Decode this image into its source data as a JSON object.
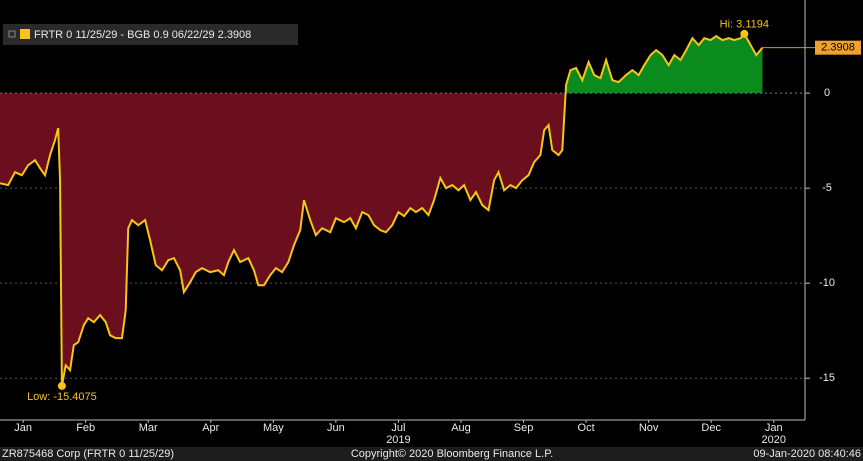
{
  "chart_data": {
    "type": "line",
    "legend_label": "FRTR 0 11/25/29 - BGB 0.9 06/22/29 2.3908",
    "color": "#f5c518",
    "fill_above": "#0b8a1e",
    "fill_below": "#6b0f1f",
    "grid": true,
    "x": [
      0.13,
      0.26,
      0.37,
      0.48,
      0.58,
      0.69,
      0.77,
      0.85,
      0.93,
      1.01,
      1.06,
      1.09,
      1.12,
      1.18,
      1.25,
      1.31,
      1.38,
      1.47,
      1.54,
      1.63,
      1.73,
      1.82,
      1.89,
      1.98,
      2.08,
      2.14,
      2.18,
      2.24,
      2.34,
      2.45,
      2.53,
      2.62,
      2.72,
      2.82,
      2.91,
      3.01,
      3.07,
      3.17,
      3.26,
      3.36,
      3.49,
      3.62,
      3.71,
      3.78,
      3.87,
      3.97,
      4.1,
      4.19,
      4.26,
      4.35,
      4.45,
      4.54,
      4.64,
      4.74,
      4.83,
      4.93,
      4.99,
      5.09,
      5.18,
      5.28,
      5.41,
      5.5,
      5.63,
      5.73,
      5.82,
      5.92,
      6.02,
      6.11,
      6.21,
      6.3,
      6.4,
      6.5,
      6.59,
      6.69,
      6.78,
      6.88,
      6.98,
      7.07,
      7.17,
      7.26,
      7.36,
      7.46,
      7.55,
      7.65,
      7.74,
      7.84,
      7.94,
      8.03,
      8.1,
      8.19,
      8.29,
      8.38,
      8.48,
      8.58,
      8.67,
      8.77,
      8.83,
      8.9,
      8.96,
      9.06,
      9.12,
      9.18,
      9.25,
      9.34,
      9.44,
      9.54,
      9.63,
      9.73,
      9.82,
      9.92,
      10.02,
      10.14,
      10.24,
      10.34,
      10.43,
      10.53,
      10.62,
      10.72,
      10.82,
      10.91,
      11.01,
      11.1,
      11.2,
      11.3,
      11.39,
      11.49,
      11.58,
      11.68,
      11.78,
      11.87,
      11.97,
      12.03,
      12.13,
      12.22,
      12.32
    ],
    "values": [
      -4.74,
      -4.84,
      -4.16,
      -4.32,
      -3.79,
      -3.53,
      -3.95,
      -4.32,
      -3.26,
      -2.47,
      -1.84,
      -4.58,
      -15.4075,
      -14.32,
      -14.58,
      -13.26,
      -13.11,
      -12.21,
      -11.84,
      -12.05,
      -11.68,
      -12.05,
      -12.74,
      -12.89,
      -12.89,
      -11.42,
      -7.11,
      -6.68,
      -6.95,
      -6.68,
      -7.74,
      -9.05,
      -9.32,
      -8.79,
      -8.68,
      -9.32,
      -10.47,
      -9.95,
      -9.42,
      -9.21,
      -9.42,
      -9.32,
      -9.58,
      -8.89,
      -8.26,
      -8.89,
      -8.68,
      -9.32,
      -10.11,
      -10.11,
      -9.58,
      -9.21,
      -9.42,
      -8.89,
      -8.0,
      -7.21,
      -5.63,
      -6.68,
      -7.47,
      -7.11,
      -7.32,
      -6.58,
      -6.79,
      -6.58,
      -7.11,
      -6.26,
      -6.42,
      -6.95,
      -7.21,
      -7.32,
      -6.95,
      -6.26,
      -6.47,
      -6.05,
      -6.26,
      -6.05,
      -6.42,
      -5.63,
      -4.47,
      -5.0,
      -4.84,
      -5.11,
      -4.84,
      -5.63,
      -5.21,
      -5.89,
      -6.16,
      -4.58,
      -4.16,
      -5.11,
      -4.84,
      -5.0,
      -4.58,
      -4.32,
      -3.63,
      -3.26,
      -1.95,
      -1.68,
      -3.0,
      -3.26,
      -3.0,
      0.42,
      1.21,
      1.32,
      0.68,
      1.63,
      0.95,
      0.79,
      1.74,
      0.68,
      0.58,
      0.95,
      1.21,
      0.95,
      1.47,
      2.0,
      2.26,
      2.0,
      1.47,
      2.0,
      1.74,
      2.26,
      2.89,
      2.53,
      2.89,
      2.79,
      3.0,
      2.79,
      2.89,
      2.79,
      2.89,
      3.1194,
      2.53,
      2.0,
      2.3908
    ],
    "xlim": [
      0.13,
      13.0
    ],
    "xticks": [
      {
        "value": 0.5,
        "label": "Jan"
      },
      {
        "value": 1.5,
        "label": "Feb"
      },
      {
        "value": 2.5,
        "label": "Mar"
      },
      {
        "value": 3.5,
        "label": "Apr"
      },
      {
        "value": 4.5,
        "label": "May"
      },
      {
        "value": 5.5,
        "label": "Jun"
      },
      {
        "value": 6.5,
        "label": "Jul"
      },
      {
        "value": 7.5,
        "label": "Aug"
      },
      {
        "value": 8.5,
        "label": "Sep"
      },
      {
        "value": 9.5,
        "label": "Oct"
      },
      {
        "value": 10.5,
        "label": "Nov"
      },
      {
        "value": 11.5,
        "label": "Dec"
      },
      {
        "value": 12.5,
        "label": "Jan"
      }
    ],
    "year_labels": [
      {
        "value": 6.5,
        "label": "2019"
      },
      {
        "value": 12.5,
        "label": "2020"
      }
    ],
    "ylim": [
      -17.2,
      4.9
    ],
    "yticks": [
      0,
      -5,
      -10,
      -15
    ],
    "hi_label": "Hi: 3.1194",
    "low_label": "Low: -15.4075",
    "last_label": "2.3908",
    "footer_left": "ZR875468 Corp (FRTR 0 11/25/29)",
    "footer_center": "Copyright© 2020 Bloomberg Finance L.P.",
    "footer_right": "09-Jan-2020 08:40:46"
  }
}
